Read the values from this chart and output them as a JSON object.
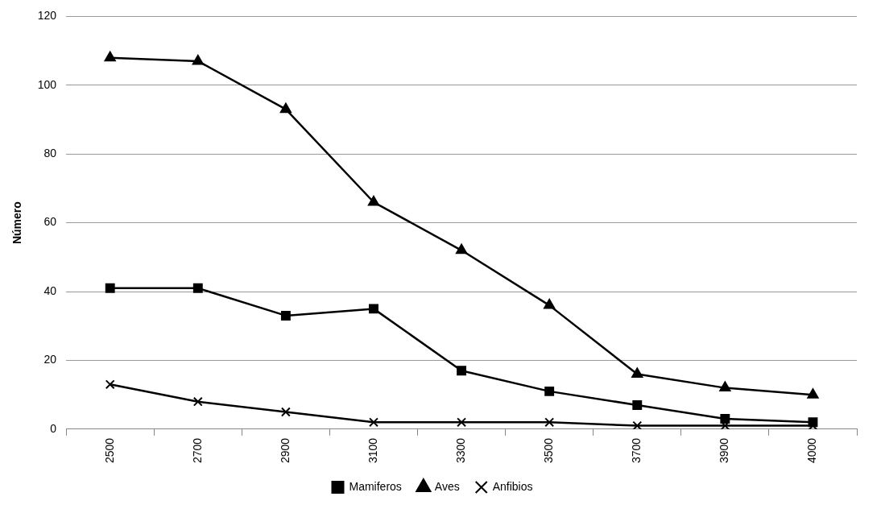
{
  "chart_data": {
    "type": "line",
    "ylabel": "Número",
    "categories": [
      "2500",
      "2700",
      "2900",
      "3100",
      "3300",
      "3500",
      "3700",
      "3900",
      "4000"
    ],
    "series": [
      {
        "name": "Mamiferos",
        "color": "#000000",
        "marker": "square",
        "values": [
          41,
          41,
          33,
          35,
          17,
          11,
          7,
          3,
          2
        ]
      },
      {
        "name": "Aves",
        "color": "#000000",
        "marker": "triangle",
        "values": [
          108,
          107,
          93,
          66,
          52,
          36,
          16,
          12,
          10
        ]
      },
      {
        "name": "Anfibios",
        "color": "#000000",
        "marker": "cross",
        "values": [
          13,
          8,
          5,
          2,
          2,
          2,
          1,
          1,
          1
        ]
      }
    ],
    "ylim": [
      0,
      120
    ],
    "yticks": [
      0,
      20,
      40,
      60,
      80,
      100,
      120
    ],
    "grid": "y",
    "legend": "bottom",
    "line_style": "solid"
  }
}
